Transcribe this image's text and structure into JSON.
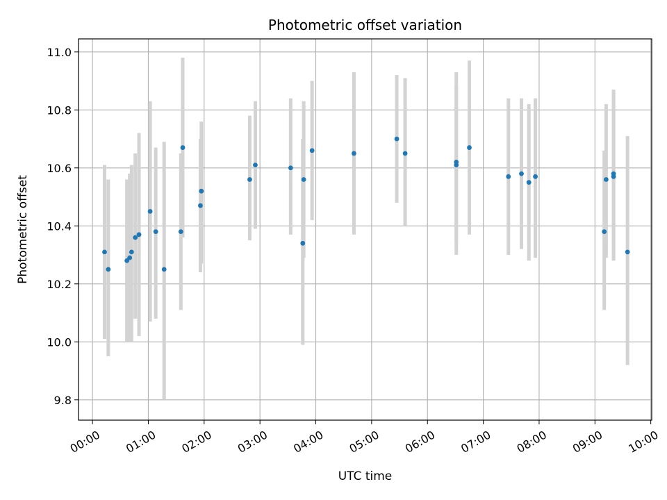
{
  "chart_data": {
    "type": "scatter",
    "title": "Photometric offset variation",
    "xlabel": "UTC time",
    "ylabel": "Photometric offset",
    "xlim": [
      "-00:15",
      "10:01"
    ],
    "ylim": [
      9.73,
      11.045
    ],
    "grid": true,
    "x_ticks": [
      "00:00",
      "01:00",
      "02:00",
      "03:00",
      "04:00",
      "05:00",
      "06:00",
      "07:00",
      "08:00",
      "09:00",
      "10:00"
    ],
    "y_ticks": [
      "9.8",
      "10.0",
      "10.2",
      "10.4",
      "10.6",
      "10.8",
      "11.0"
    ],
    "colors": {
      "point": "#1f77b4",
      "errorbar": "#d3d3d3",
      "grid": "#b0b0b0"
    },
    "points": [
      {
        "x": "00:13",
        "y": 10.31,
        "lo": 10.01,
        "hi": 10.61
      },
      {
        "x": "00:17",
        "y": 10.25,
        "lo": 9.95,
        "hi": 10.56
      },
      {
        "x": "00:37",
        "y": 10.28,
        "lo": 10.0,
        "hi": 10.56
      },
      {
        "x": "00:40",
        "y": 10.29,
        "lo": 10.0,
        "hi": 10.58
      },
      {
        "x": "00:42",
        "y": 10.31,
        "lo": 10.0,
        "hi": 10.61
      },
      {
        "x": "00:46",
        "y": 10.36,
        "lo": 10.08,
        "hi": 10.65
      },
      {
        "x": "00:50",
        "y": 10.37,
        "lo": 10.02,
        "hi": 10.72
      },
      {
        "x": "01:02",
        "y": 10.45,
        "lo": 10.07,
        "hi": 10.83
      },
      {
        "x": "01:08",
        "y": 10.38,
        "lo": 10.08,
        "hi": 10.67
      },
      {
        "x": "01:17",
        "y": 10.25,
        "lo": 9.8,
        "hi": 10.69
      },
      {
        "x": "01:35",
        "y": 10.38,
        "lo": 10.11,
        "hi": 10.65
      },
      {
        "x": "01:37",
        "y": 10.67,
        "lo": 10.36,
        "hi": 10.98
      },
      {
        "x": "01:56",
        "y": 10.47,
        "lo": 10.24,
        "hi": 10.7
      },
      {
        "x": "01:57",
        "y": 10.52,
        "lo": 10.27,
        "hi": 10.76
      },
      {
        "x": "02:49",
        "y": 10.56,
        "lo": 10.35,
        "hi": 10.78
      },
      {
        "x": "02:55",
        "y": 10.61,
        "lo": 10.39,
        "hi": 10.83
      },
      {
        "x": "03:33",
        "y": 10.6,
        "lo": 10.37,
        "hi": 10.84
      },
      {
        "x": "03:46",
        "y": 10.34,
        "lo": 9.99,
        "hi": 10.7
      },
      {
        "x": "03:47",
        "y": 10.56,
        "lo": 10.29,
        "hi": 10.83
      },
      {
        "x": "03:56",
        "y": 10.66,
        "lo": 10.42,
        "hi": 10.9
      },
      {
        "x": "04:41",
        "y": 10.65,
        "lo": 10.37,
        "hi": 10.93
      },
      {
        "x": "05:27",
        "y": 10.7,
        "lo": 10.48,
        "hi": 10.92
      },
      {
        "x": "05:36",
        "y": 10.65,
        "lo": 10.4,
        "hi": 10.91
      },
      {
        "x": "06:31",
        "y": 10.61,
        "lo": 10.3,
        "hi": 10.93
      },
      {
        "x": "06:31",
        "y": 10.62,
        "lo": 10.35,
        "hi": 10.88
      },
      {
        "x": "06:45",
        "y": 10.67,
        "lo": 10.37,
        "hi": 10.97
      },
      {
        "x": "07:27",
        "y": 10.57,
        "lo": 10.3,
        "hi": 10.84
      },
      {
        "x": "07:41",
        "y": 10.58,
        "lo": 10.32,
        "hi": 10.84
      },
      {
        "x": "07:49",
        "y": 10.55,
        "lo": 10.28,
        "hi": 10.82
      },
      {
        "x": "07:56",
        "y": 10.57,
        "lo": 10.29,
        "hi": 10.84
      },
      {
        "x": "09:10",
        "y": 10.38,
        "lo": 10.11,
        "hi": 10.66
      },
      {
        "x": "09:12",
        "y": 10.56,
        "lo": 10.29,
        "hi": 10.82
      },
      {
        "x": "09:20",
        "y": 10.57,
        "lo": 10.28,
        "hi": 10.86
      },
      {
        "x": "09:20",
        "y": 10.58,
        "lo": 10.29,
        "hi": 10.87
      },
      {
        "x": "09:35",
        "y": 10.31,
        "lo": 9.92,
        "hi": 10.71
      }
    ]
  }
}
